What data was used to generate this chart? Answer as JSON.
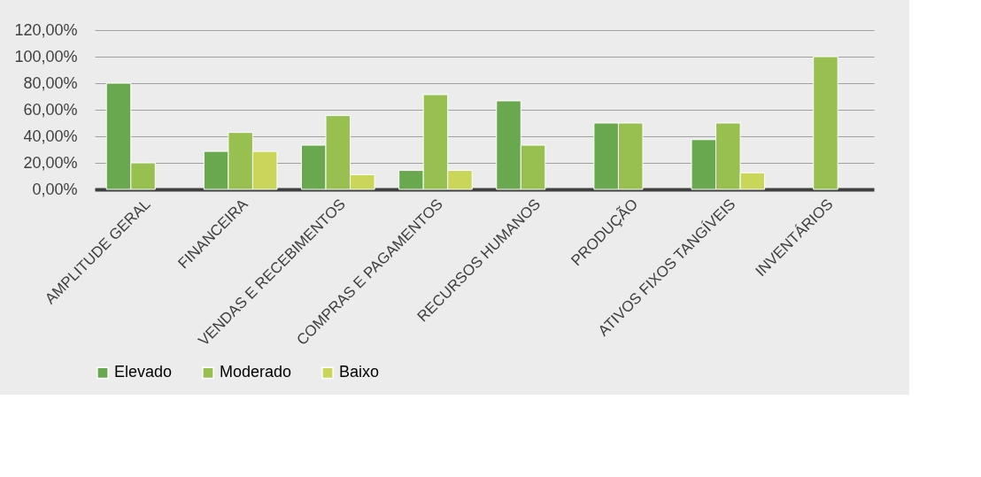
{
  "chart_data": {
    "type": "bar",
    "categories": [
      "AMPLITUDE GERAL",
      "FINANCEIRA",
      "VENDAS E RECEBIMENTOS",
      "COMPRAS E PAGAMENTOS",
      "RECURSOS HUMANOS",
      "PRODUÇÃO",
      "ATIVOS FIXOS TANGÍVEIS",
      "INVENTÁRIOS"
    ],
    "series": [
      {
        "name": "Elevado",
        "color": "#6aa84f",
        "values": [
          0.8,
          0.286,
          0.333,
          0.143,
          0.667,
          0.5,
          0.375,
          null
        ]
      },
      {
        "name": "Moderado",
        "color": "#97c050",
        "values": [
          0.2,
          0.429,
          0.556,
          0.714,
          0.333,
          0.5,
          0.5,
          1.0
        ]
      },
      {
        "name": "Baixo",
        "color": "#c9d659",
        "values": [
          null,
          0.286,
          0.111,
          0.143,
          null,
          null,
          0.125,
          null
        ]
      }
    ],
    "ylim": [
      0,
      1.2
    ],
    "yticks": [
      {
        "value": 0,
        "label": "0,00%"
      },
      {
        "value": 0.2,
        "label": "20,00%"
      },
      {
        "value": 0.4,
        "label": "40,00%"
      },
      {
        "value": 0.6,
        "label": "60,00%"
      },
      {
        "value": 0.8,
        "label": "80,00%"
      },
      {
        "value": 1.0,
        "label": "100,00%"
      },
      {
        "value": 1.2,
        "label": "120,00%"
      }
    ],
    "grid": "y",
    "legend": "bottom"
  }
}
